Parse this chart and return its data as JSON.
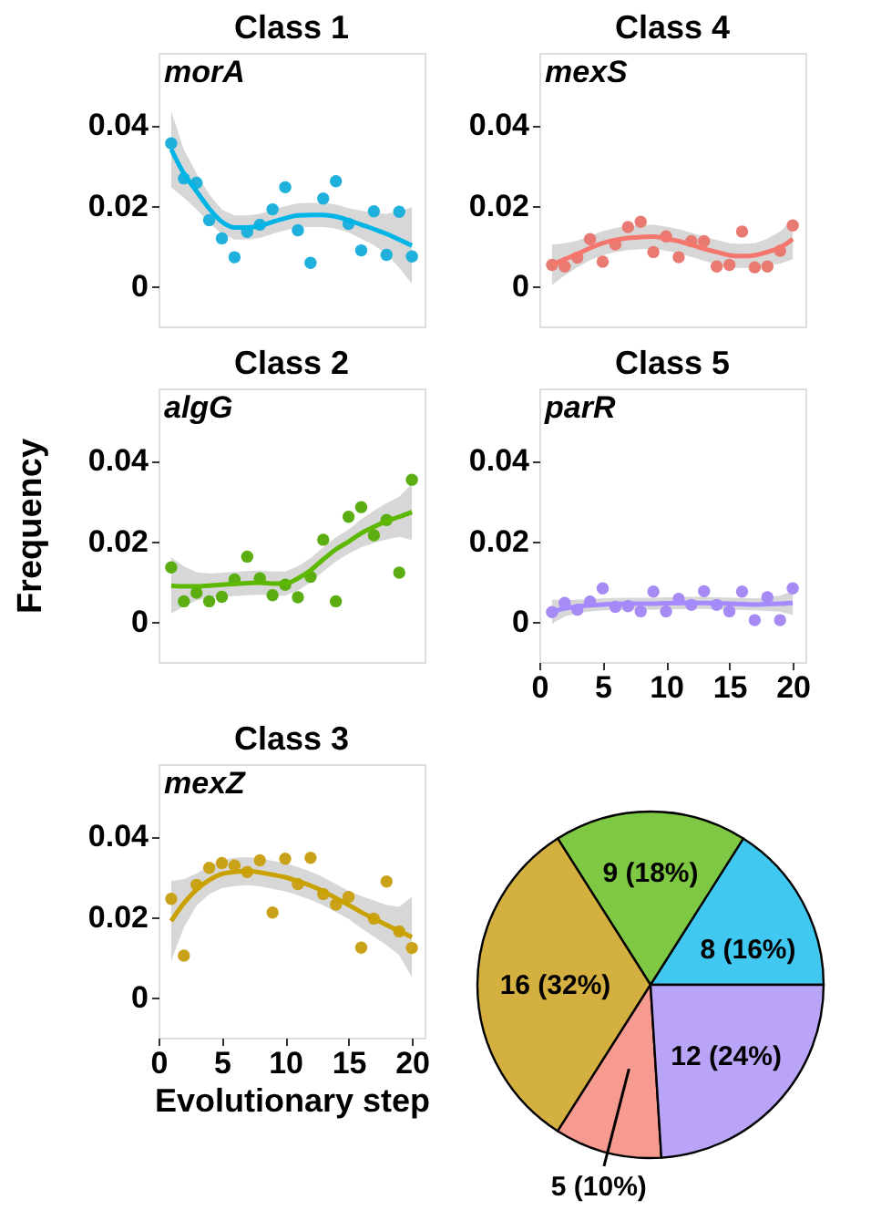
{
  "chart_data": [
    {
      "type": "scatter",
      "title": "Class 1",
      "annotations": [
        "morA"
      ],
      "x": [
        1,
        2,
        3,
        4,
        5,
        6,
        7,
        8,
        9,
        10,
        11,
        12,
        13,
        14,
        15,
        16,
        17,
        18,
        19,
        20
      ],
      "xlim": [
        0,
        21
      ],
      "ylim": [
        -0.01,
        0.058
      ],
      "yticks": [
        0,
        0.02,
        0.04
      ],
      "tick_labels": "y",
      "grid": false,
      "series": [
        {
          "type": "scatter",
          "marker": "circle",
          "color": "#1fb0dc",
          "values": [
            0.0355,
            0.0268,
            0.0257,
            0.0164,
            0.0119,
            0.0072,
            0.0135,
            0.0153,
            0.0191,
            0.0246,
            0.0139,
            0.0058,
            0.0218,
            0.0261,
            0.0155,
            0.0089,
            0.0186,
            0.0078,
            0.0185,
            0.0074
          ]
        },
        {
          "type": "line",
          "color": "#00b4e6",
          "values": [
            0.034,
            0.028,
            0.0236,
            0.0193,
            0.016,
            0.0146,
            0.0146,
            0.015,
            0.016,
            0.0169,
            0.0176,
            0.0177,
            0.0177,
            0.0173,
            0.0164,
            0.0153,
            0.0142,
            0.013,
            0.0116,
            0.0101
          ],
          "lower": [
            0.0245,
            0.022,
            0.0191,
            0.0158,
            0.013,
            0.0116,
            0.0116,
            0.012,
            0.013,
            0.0139,
            0.0146,
            0.0147,
            0.0147,
            0.0143,
            0.0134,
            0.0118,
            0.0102,
            0.008,
            0.0046,
            0.0006
          ],
          "upper": [
            0.0435,
            0.034,
            0.0281,
            0.0228,
            0.019,
            0.0176,
            0.0176,
            0.018,
            0.019,
            0.0199,
            0.0206,
            0.0207,
            0.0207,
            0.0203,
            0.0194,
            0.0188,
            0.0182,
            0.018,
            0.0186,
            0.0196
          ]
        }
      ]
    },
    {
      "type": "scatter",
      "title": "Class 4",
      "annotations": [
        "mexS"
      ],
      "x": [
        1,
        2,
        3,
        4,
        5,
        6,
        7,
        8,
        9,
        10,
        11,
        12,
        13,
        14,
        15,
        16,
        17,
        18,
        19,
        20
      ],
      "xlim": [
        0,
        21
      ],
      "ylim": [
        -0.01,
        0.058
      ],
      "yticks": [
        0,
        0.02,
        0.04
      ],
      "tick_labels": "y",
      "grid": false,
      "series": [
        {
          "type": "scatter",
          "marker": "circle",
          "color": "#e87a72",
          "values": [
            0.0053,
            0.0049,
            0.0071,
            0.0117,
            0.0061,
            0.0104,
            0.0147,
            0.016,
            0.0085,
            0.0124,
            0.0072,
            0.0112,
            0.0112,
            0.0049,
            0.0053,
            0.0136,
            0.0047,
            0.0049,
            0.0088,
            0.0151
          ]
        },
        {
          "type": "line",
          "color": "#f4766d",
          "values": [
            0.0053,
            0.0067,
            0.008,
            0.0095,
            0.0107,
            0.0115,
            0.012,
            0.0122,
            0.0123,
            0.0118,
            0.0112,
            0.0103,
            0.0093,
            0.0085,
            0.0077,
            0.0075,
            0.0077,
            0.0085,
            0.0096,
            0.0117
          ],
          "lower": [
            0.0003,
            0.0027,
            0.0047,
            0.0065,
            0.0077,
            0.0085,
            0.009,
            0.0092,
            0.0093,
            0.0088,
            0.0082,
            0.0073,
            0.0063,
            0.0055,
            0.0047,
            0.0045,
            0.0047,
            0.0052,
            0.0056,
            0.0067
          ],
          "upper": [
            0.0103,
            0.0107,
            0.0113,
            0.0125,
            0.0137,
            0.0145,
            0.015,
            0.0152,
            0.0153,
            0.0148,
            0.0142,
            0.0133,
            0.0123,
            0.0115,
            0.0107,
            0.0105,
            0.0107,
            0.0118,
            0.0136,
            0.0167
          ]
        }
      ]
    },
    {
      "type": "scatter",
      "title": "Class 2",
      "annotations": [
        "algG"
      ],
      "ylabel": "Frequency",
      "x": [
        1,
        2,
        3,
        4,
        5,
        6,
        7,
        8,
        9,
        10,
        11,
        12,
        13,
        14,
        15,
        16,
        17,
        18,
        19,
        20
      ],
      "xlim": [
        0,
        21
      ],
      "ylim": [
        -0.01,
        0.058
      ],
      "yticks": [
        0,
        0.02,
        0.04
      ],
      "tick_labels": "y",
      "grid": false,
      "series": [
        {
          "type": "scatter",
          "marker": "circle",
          "color": "#5aae12",
          "values": [
            0.0135,
            0.0051,
            0.0072,
            0.0051,
            0.0062,
            0.0105,
            0.0162,
            0.0108,
            0.0066,
            0.0092,
            0.0061,
            0.0112,
            0.0204,
            0.0051,
            0.0261,
            0.0285,
            0.0215,
            0.0253,
            0.0122,
            0.0353
          ]
        },
        {
          "type": "line",
          "color": "#5cb800",
          "values": [
            0.009,
            0.0088,
            0.0088,
            0.009,
            0.0092,
            0.0094,
            0.0096,
            0.0097,
            0.0095,
            0.0095,
            0.0108,
            0.0128,
            0.0155,
            0.018,
            0.0199,
            0.022,
            0.0236,
            0.025,
            0.0261,
            0.0273
          ],
          "lower": [
            0.002,
            0.0038,
            0.0053,
            0.006,
            0.0062,
            0.0064,
            0.0066,
            0.0067,
            0.0065,
            0.0065,
            0.0078,
            0.0098,
            0.0125,
            0.015,
            0.0169,
            0.0185,
            0.0196,
            0.0205,
            0.0211,
            0.0203
          ],
          "upper": [
            0.016,
            0.0138,
            0.0123,
            0.012,
            0.0122,
            0.0124,
            0.0126,
            0.0127,
            0.0125,
            0.0125,
            0.0138,
            0.0158,
            0.0185,
            0.021,
            0.0229,
            0.0255,
            0.0276,
            0.0295,
            0.0311,
            0.0343
          ]
        }
      ]
    },
    {
      "type": "scatter",
      "title": "Class 5",
      "annotations": [
        "parR"
      ],
      "x": [
        1,
        2,
        3,
        4,
        5,
        6,
        7,
        8,
        9,
        10,
        11,
        12,
        13,
        14,
        15,
        16,
        17,
        18,
        19,
        20
      ],
      "xlim": [
        0,
        21
      ],
      "xticks": [
        0,
        5,
        10,
        15,
        20
      ],
      "ylim": [
        -0.01,
        0.058
      ],
      "yticks": [
        0,
        0.02,
        0.04
      ],
      "grid": false,
      "series": [
        {
          "type": "scatter",
          "marker": "circle",
          "color": "#a68bf5",
          "values": [
            0.0024,
            0.0047,
            0.003,
            0.005,
            0.0083,
            0.0037,
            0.0039,
            0.0026,
            0.0075,
            0.0026,
            0.0057,
            0.0042,
            0.0076,
            0.0042,
            0.0026,
            0.0075,
            0.0004,
            0.0061,
            0.0004,
            0.0083
          ]
        },
        {
          "type": "line",
          "color": "#a58aff",
          "values": [
            0.0025,
            0.0033,
            0.0038,
            0.0041,
            0.0043,
            0.0044,
            0.0045,
            0.0045,
            0.0045,
            0.0046,
            0.0046,
            0.0047,
            0.0047,
            0.0046,
            0.0045,
            0.0044,
            0.0043,
            0.0044,
            0.0045,
            0.0047
          ],
          "lower": [
            -0.0005,
            0.0013,
            0.0021,
            0.0026,
            0.0028,
            0.0029,
            0.003,
            0.003,
            0.003,
            0.0031,
            0.0031,
            0.0032,
            0.0032,
            0.0031,
            0.003,
            0.0029,
            0.0028,
            0.0027,
            0.0025,
            0.0017
          ],
          "upper": [
            0.0055,
            0.0053,
            0.0055,
            0.0056,
            0.0058,
            0.0059,
            0.006,
            0.006,
            0.006,
            0.0061,
            0.0061,
            0.0062,
            0.0062,
            0.0061,
            0.006,
            0.0059,
            0.0058,
            0.0061,
            0.0065,
            0.0077
          ]
        }
      ]
    },
    {
      "type": "scatter",
      "title": "Class 3",
      "annotations": [
        "mexZ"
      ],
      "xlabel": "Evolutionary step",
      "x": [
        1,
        2,
        3,
        4,
        5,
        6,
        7,
        8,
        9,
        10,
        11,
        12,
        13,
        14,
        15,
        16,
        17,
        18,
        19,
        20
      ],
      "xlim": [
        0,
        21
      ],
      "xticks": [
        0,
        5,
        10,
        15,
        20
      ],
      "ylim": [
        -0.01,
        0.058
      ],
      "yticks": [
        0,
        0.02,
        0.04
      ],
      "grid": false,
      "series": [
        {
          "type": "scatter",
          "marker": "circle",
          "color": "#c9a21a",
          "values": [
            0.0245,
            0.0104,
            0.028,
            0.0322,
            0.0334,
            0.0328,
            0.0312,
            0.0341,
            0.0211,
            0.0345,
            0.0282,
            0.0347,
            0.0257,
            0.0231,
            0.025,
            0.0124,
            0.0196,
            0.0288,
            0.0164,
            0.0123
          ]
        },
        {
          "type": "line",
          "color": "#c9a100",
          "values": [
            0.019,
            0.0234,
            0.0268,
            0.0292,
            0.0307,
            0.0312,
            0.0314,
            0.0311,
            0.0305,
            0.0299,
            0.0289,
            0.0278,
            0.0264,
            0.0247,
            0.023,
            0.0212,
            0.0196,
            0.018,
            0.0165,
            0.015
          ],
          "lower": [
            0.009,
            0.0174,
            0.0228,
            0.0257,
            0.0272,
            0.0277,
            0.0279,
            0.0276,
            0.027,
            0.0264,
            0.0254,
            0.0243,
            0.0229,
            0.0212,
            0.0195,
            0.0172,
            0.0151,
            0.013,
            0.0105,
            0.005
          ],
          "upper": [
            0.029,
            0.0294,
            0.0308,
            0.0327,
            0.0342,
            0.0347,
            0.0349,
            0.0346,
            0.034,
            0.0334,
            0.0324,
            0.0313,
            0.0299,
            0.0282,
            0.0265,
            0.0252,
            0.0241,
            0.023,
            0.0225,
            0.025
          ]
        }
      ]
    },
    {
      "type": "pie",
      "categories": [
        null,
        null,
        null,
        null,
        null
      ],
      "values": [
        8,
        9,
        16,
        5,
        12
      ],
      "colors": [
        "#41c8f0",
        "#7fc843",
        "#d4b040",
        "#f79a90",
        "#b9a4f8"
      ],
      "value_labels": [
        "8 (16%)",
        "9 (18%)",
        "16 (32%)",
        "5 (10%)",
        "12 (24%)"
      ],
      "legend": false
    }
  ]
}
